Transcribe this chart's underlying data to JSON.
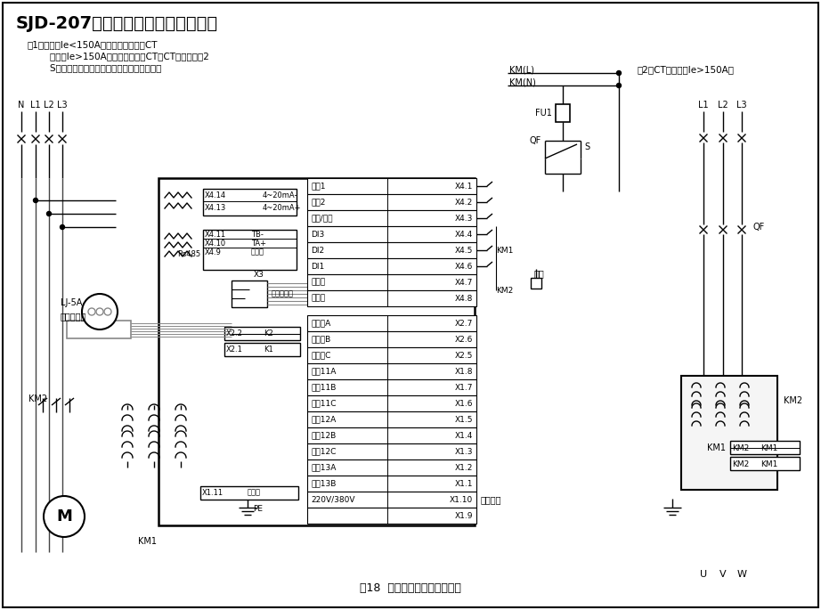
{
  "title": "SJD-207自耦变压器降压启动接线图",
  "note1": "注1：当电机Ie<150A，不需要外接保护CT",
  "note2": "        当电机Ie>150A，需要外接保护CT，CT的接线参注2",
  "note3": "        S为轴展手柄辅助接点，仅在试验位置时接通",
  "note_ct": "注2：CT的接线（Ie>150A）",
  "kml": "KM(L)",
  "kmn": "KM(N)",
  "fu1": "FU1",
  "qf": "QF",
  "s": "S",
  "n_labels": [
    "N",
    "L1",
    "L2",
    "L3"
  ],
  "x414": "X4.14",
  "x413": "X4.13",
  "ma_minus": "4~20mA-",
  "ma_plus": "4~20mA+",
  "x411": "X4.11",
  "x410": "X4.10",
  "x49": "X4.9",
  "tb_minus": "TB-",
  "ta_plus": "TA+",
  "shield": "屏蔽地",
  "rs485": "Rs485",
  "x3": "X3",
  "sensor_port": "互感器接口",
  "x22": "X2.2",
  "k2": "K2",
  "x21": "X2.1",
  "k1": "K1",
  "x111": "X1.11",
  "protect_gnd": "保护地",
  "pe": "PE",
  "rows_top": [
    [
      "启动1",
      "X4.1"
    ],
    [
      "启动2",
      "X4.2"
    ],
    [
      "停机/复位",
      "X4.3"
    ],
    [
      "DI3",
      "X4.4"
    ],
    [
      "DI2",
      "X4.5"
    ],
    [
      "DI1",
      "X4.6"
    ],
    [
      "公共端",
      "X4.7"
    ],
    [
      "公共端",
      "X4.8"
    ]
  ],
  "rows_bot": [
    [
      "可编程A",
      "X2.7"
    ],
    [
      "可编程B",
      "X2.6"
    ],
    [
      "可编程C",
      "X2.5"
    ],
    [
      "控制11A",
      "X1.8"
    ],
    [
      "控制11B",
      "X1.7"
    ],
    [
      "控制11C",
      "X1.6"
    ],
    [
      "控制12A",
      "X1.5"
    ],
    [
      "控制12B",
      "X1.4"
    ],
    [
      "控制12C",
      "X1.3"
    ],
    [
      "控制13A",
      "X1.2"
    ],
    [
      "控制13B",
      "X1.1"
    ],
    [
      "220V/380V",
      "X1.10"
    ],
    [
      "",
      "X1.9"
    ]
  ],
  "power_input": "电原输入",
  "lj5a": "LJ-5A",
  "zero_ct": "零序互感器",
  "km2": "KM2",
  "km1_label": "KM1",
  "km1": "KM1",
  "emergency": "紧停",
  "km2_label": "KM2",
  "right_l123": [
    "L1",
    "L2",
    "L3"
  ],
  "right_qf": "QF",
  "uvw": [
    "U",
    "V",
    "W"
  ],
  "caption": "图18  自耦变压器降压启动接线",
  "bg": "#ffffff"
}
